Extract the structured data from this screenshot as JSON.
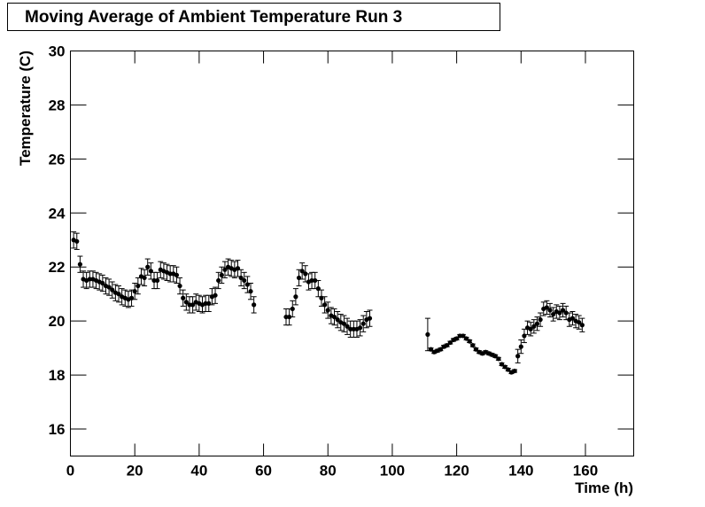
{
  "chart_data": {
    "type": "scatter",
    "title": "Moving Average of Ambient Temperature Run 3",
    "xlabel": "Time (h)",
    "ylabel": "Temperature (C)",
    "xlim": [
      0,
      175
    ],
    "ylim": [
      15,
      30
    ],
    "xticks": [
      0,
      20,
      40,
      60,
      80,
      100,
      120,
      140,
      160
    ],
    "yticks": [
      16,
      18,
      20,
      22,
      24,
      26,
      28,
      30
    ],
    "series": [
      {
        "color": "#000000",
        "x": [
          1,
          2,
          3,
          4,
          5,
          6,
          7,
          8,
          9,
          10,
          11,
          12,
          13,
          14,
          15,
          16,
          17,
          18,
          19,
          20,
          21,
          22,
          23,
          24,
          25,
          26,
          27,
          28,
          29,
          30,
          31,
          32,
          33,
          34,
          35,
          36,
          37,
          38,
          39,
          40,
          41,
          42,
          43,
          44,
          45,
          46,
          47,
          48,
          49,
          50,
          51,
          52,
          53,
          54,
          55,
          56,
          57,
          67,
          68,
          69,
          70,
          71,
          72,
          73,
          74,
          75,
          76,
          77,
          78,
          79,
          80,
          81,
          82,
          83,
          84,
          85,
          86,
          87,
          88,
          89,
          90,
          91,
          92,
          93,
          111,
          112,
          113,
          114,
          115,
          116,
          117,
          118,
          119,
          120,
          121,
          122,
          123,
          124,
          125,
          126,
          127,
          128,
          129,
          130,
          131,
          132,
          133,
          134,
          135,
          136,
          137,
          138,
          139,
          140,
          141,
          142,
          143,
          144,
          145,
          146,
          147,
          148,
          149,
          150,
          151,
          152,
          153,
          154,
          155,
          156,
          157,
          158,
          159
        ],
        "values": [
          23.0,
          22.95,
          22.1,
          21.55,
          21.5,
          21.55,
          21.55,
          21.5,
          21.45,
          21.4,
          21.3,
          21.25,
          21.15,
          21.05,
          21.0,
          20.9,
          20.85,
          20.8,
          20.85,
          21.1,
          21.3,
          21.65,
          21.6,
          22.0,
          21.85,
          21.5,
          21.5,
          21.9,
          21.85,
          21.8,
          21.75,
          21.75,
          21.7,
          21.3,
          20.85,
          20.7,
          20.6,
          20.6,
          20.7,
          20.65,
          20.6,
          20.65,
          20.65,
          20.9,
          20.95,
          21.5,
          21.7,
          21.9,
          22.0,
          21.95,
          21.9,
          21.95,
          21.6,
          21.5,
          21.35,
          21.1,
          20.6,
          20.15,
          20.15,
          20.45,
          20.9,
          21.6,
          21.85,
          21.75,
          21.45,
          21.5,
          21.5,
          21.2,
          20.85,
          20.6,
          20.4,
          20.2,
          20.15,
          20.05,
          19.95,
          19.9,
          19.8,
          19.7,
          19.7,
          19.7,
          19.75,
          19.9,
          20.05,
          20.1,
          19.5,
          18.95,
          18.85,
          18.9,
          18.95,
          19.05,
          19.1,
          19.2,
          19.3,
          19.35,
          19.45,
          19.45,
          19.35,
          19.25,
          19.1,
          18.95,
          18.85,
          18.8,
          18.85,
          18.8,
          18.75,
          18.7,
          18.6,
          18.4,
          18.3,
          18.2,
          18.1,
          18.15,
          18.7,
          19.05,
          19.45,
          19.75,
          19.7,
          19.8,
          19.9,
          20.05,
          20.45,
          20.5,
          20.4,
          20.25,
          20.35,
          20.3,
          20.4,
          20.3,
          20.05,
          20.1,
          20.0,
          19.95,
          19.85
        ],
        "errors": [
          0.3,
          0.3,
          0.3,
          0.3,
          0.3,
          0.3,
          0.3,
          0.3,
          0.3,
          0.3,
          0.3,
          0.3,
          0.3,
          0.3,
          0.3,
          0.3,
          0.3,
          0.3,
          0.3,
          0.3,
          0.3,
          0.3,
          0.3,
          0.3,
          0.3,
          0.3,
          0.3,
          0.3,
          0.3,
          0.3,
          0.3,
          0.3,
          0.3,
          0.3,
          0.3,
          0.3,
          0.3,
          0.3,
          0.3,
          0.3,
          0.3,
          0.3,
          0.3,
          0.3,
          0.3,
          0.3,
          0.3,
          0.3,
          0.3,
          0.3,
          0.3,
          0.3,
          0.3,
          0.3,
          0.3,
          0.3,
          0.3,
          0.3,
          0.3,
          0.3,
          0.3,
          0.3,
          0.3,
          0.3,
          0.3,
          0.3,
          0.3,
          0.3,
          0.3,
          0.3,
          0.3,
          0.3,
          0.3,
          0.3,
          0.3,
          0.3,
          0.3,
          0.3,
          0.3,
          0.3,
          0.3,
          0.3,
          0.3,
          0.3,
          0.6,
          0.05,
          0.05,
          0.05,
          0.05,
          0.05,
          0.05,
          0.05,
          0.05,
          0.05,
          0.05,
          0.05,
          0.05,
          0.05,
          0.05,
          0.05,
          0.05,
          0.05,
          0.05,
          0.05,
          0.05,
          0.05,
          0.05,
          0.05,
          0.05,
          0.05,
          0.05,
          0.05,
          0.25,
          0.25,
          0.25,
          0.25,
          0.25,
          0.25,
          0.25,
          0.25,
          0.25,
          0.25,
          0.25,
          0.25,
          0.25,
          0.25,
          0.25,
          0.25,
          0.25,
          0.25,
          0.25,
          0.25,
          0.25
        ]
      }
    ]
  }
}
